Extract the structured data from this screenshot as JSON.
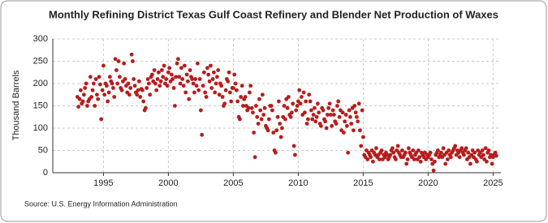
{
  "chart_data": {
    "type": "scatter",
    "title": "Monthly Refining District Texas Gulf Coast Refinery and Blender Net Production of Waxes",
    "ylabel": "Thousand Barrels",
    "source": "Source: U.S. Energy Information Administration",
    "color": "#b81c1c",
    "grid": true,
    "xlim": [
      1991.1,
      2025.6
    ],
    "xticks": [
      1995,
      2000,
      2005,
      2010,
      2015,
      2020,
      2025
    ],
    "ylim": [
      0,
      300
    ],
    "yticks": [
      0,
      50,
      100,
      150,
      200,
      250,
      300
    ],
    "x": [
      1993,
      1993.08,
      1993.17,
      1993.25,
      1993.33,
      1993.42,
      1993.5,
      1993.58,
      1993.67,
      1993.75,
      1993.83,
      1993.92,
      1994,
      1994.08,
      1994.17,
      1994.25,
      1994.33,
      1994.42,
      1994.5,
      1994.58,
      1994.67,
      1994.75,
      1994.83,
      1994.92,
      1995,
      1995.08,
      1995.17,
      1995.25,
      1995.33,
      1995.42,
      1995.5,
      1995.58,
      1995.67,
      1995.75,
      1995.83,
      1995.92,
      1996,
      1996.08,
      1996.17,
      1996.25,
      1996.33,
      1996.42,
      1996.5,
      1996.58,
      1996.67,
      1996.75,
      1996.83,
      1996.92,
      1997,
      1997.08,
      1997.17,
      1997.25,
      1997.33,
      1997.42,
      1997.5,
      1997.58,
      1997.67,
      1997.75,
      1997.83,
      1997.92,
      1998,
      1998.08,
      1998.17,
      1998.25,
      1998.33,
      1998.42,
      1998.5,
      1998.58,
      1998.67,
      1998.75,
      1998.83,
      1998.92,
      1999,
      1999.08,
      1999.17,
      1999.25,
      1999.33,
      1999.42,
      1999.5,
      1999.58,
      1999.67,
      1999.75,
      1999.83,
      1999.92,
      2000,
      2000.08,
      2000.17,
      2000.25,
      2000.33,
      2000.42,
      2000.5,
      2000.58,
      2000.67,
      2000.75,
      2000.83,
      2000.92,
      2001,
      2001.08,
      2001.17,
      2001.25,
      2001.33,
      2001.42,
      2001.5,
      2001.58,
      2001.67,
      2001.75,
      2001.83,
      2001.92,
      2002,
      2002.08,
      2002.17,
      2002.25,
      2002.33,
      2002.42,
      2002.5,
      2002.58,
      2002.67,
      2002.75,
      2002.83,
      2002.92,
      2003,
      2003.08,
      2003.17,
      2003.25,
      2003.33,
      2003.42,
      2003.5,
      2003.58,
      2003.67,
      2003.75,
      2003.83,
      2003.92,
      2004,
      2004.08,
      2004.17,
      2004.25,
      2004.33,
      2004.42,
      2004.5,
      2004.58,
      2004.67,
      2004.75,
      2004.83,
      2004.92,
      2005,
      2005.08,
      2005.17,
      2005.25,
      2005.33,
      2005.42,
      2005.5,
      2005.58,
      2005.67,
      2005.75,
      2005.83,
      2005.92,
      2006,
      2006.08,
      2006.17,
      2006.25,
      2006.33,
      2006.42,
      2006.5,
      2006.58,
      2006.67,
      2006.75,
      2006.83,
      2006.92,
      2007,
      2007.08,
      2007.17,
      2007.25,
      2007.33,
      2007.42,
      2007.5,
      2007.58,
      2007.67,
      2007.75,
      2007.83,
      2007.92,
      2008,
      2008.08,
      2008.17,
      2008.25,
      2008.33,
      2008.42,
      2008.5,
      2008.58,
      2008.67,
      2008.75,
      2008.83,
      2008.92,
      2009,
      2009.08,
      2009.17,
      2009.25,
      2009.33,
      2009.42,
      2009.5,
      2009.58,
      2009.67,
      2009.75,
      2009.83,
      2009.92,
      2010,
      2010.08,
      2010.17,
      2010.25,
      2010.33,
      2010.42,
      2010.5,
      2010.58,
      2010.67,
      2010.75,
      2010.83,
      2010.92,
      2011,
      2011.08,
      2011.17,
      2011.25,
      2011.33,
      2011.42,
      2011.5,
      2011.58,
      2011.67,
      2011.75,
      2011.83,
      2011.92,
      2012,
      2012.08,
      2012.17,
      2012.25,
      2012.33,
      2012.42,
      2012.5,
      2012.58,
      2012.67,
      2012.75,
      2012.83,
      2012.92,
      2013,
      2013.08,
      2013.17,
      2013.25,
      2013.33,
      2013.42,
      2013.5,
      2013.58,
      2013.67,
      2013.75,
      2013.83,
      2013.92,
      2014,
      2014.08,
      2014.17,
      2014.25,
      2014.33,
      2014.42,
      2014.5,
      2014.58,
      2014.67,
      2014.75,
      2014.83,
      2014.92,
      2015,
      2015.08,
      2015.17,
      2015.25,
      2015.33,
      2015.42,
      2015.5,
      2015.58,
      2015.67,
      2015.75,
      2015.83,
      2015.92,
      2016,
      2016.08,
      2016.17,
      2016.25,
      2016.33,
      2016.42,
      2016.5,
      2016.58,
      2016.67,
      2016.75,
      2016.83,
      2016.92,
      2017,
      2017.08,
      2017.17,
      2017.25,
      2017.33,
      2017.42,
      2017.5,
      2017.58,
      2017.67,
      2017.75,
      2017.83,
      2017.92,
      2018,
      2018.08,
      2018.17,
      2018.25,
      2018.33,
      2018.42,
      2018.5,
      2018.58,
      2018.67,
      2018.75,
      2018.83,
      2018.92,
      2019,
      2019.08,
      2019.17,
      2019.25,
      2019.33,
      2019.42,
      2019.5,
      2019.58,
      2019.67,
      2019.75,
      2019.83,
      2019.92,
      2020,
      2020.08,
      2020.17,
      2020.25,
      2020.33,
      2020.42,
      2020.5,
      2020.58,
      2020.67,
      2020.75,
      2020.83,
      2020.92,
      2021,
      2021.08,
      2021.17,
      2021.25,
      2021.33,
      2021.42,
      2021.5,
      2021.58,
      2021.67,
      2021.75,
      2021.83,
      2021.92,
      2022,
      2022.08,
      2022.17,
      2022.25,
      2022.33,
      2022.42,
      2022.5,
      2022.58,
      2022.67,
      2022.75,
      2022.83,
      2022.92,
      2023,
      2023.08,
      2023.17,
      2023.25,
      2023.33,
      2023.42,
      2023.5,
      2023.58,
      2023.67,
      2023.75,
      2023.83,
      2023.92,
      2024,
      2024.08,
      2024.17,
      2024.25,
      2024.33,
      2024.42,
      2024.5,
      2024.58,
      2024.67,
      2024.75,
      2024.83,
      2024.92,
      2025,
      2025.08,
      2025.17,
      2025.25
    ],
    "values": [
      170,
      148,
      165,
      185,
      155,
      160,
      175,
      190,
      200,
      150,
      160,
      165,
      215,
      170,
      185,
      200,
      150,
      210,
      175,
      165,
      215,
      198,
      120,
      185,
      240,
      175,
      200,
      195,
      160,
      180,
      215,
      205,
      200,
      190,
      170,
      255,
      230,
      200,
      250,
      215,
      190,
      185,
      205,
      245,
      210,
      195,
      180,
      200,
      175,
      190,
      265,
      250,
      210,
      195,
      180,
      175,
      185,
      205,
      170,
      188,
      185,
      160,
      140,
      145,
      190,
      210,
      200,
      175,
      215,
      220,
      205,
      230,
      200,
      185,
      210,
      225,
      195,
      205,
      230,
      215,
      240,
      200,
      210,
      195,
      225,
      235,
      205,
      220,
      210,
      190,
      150,
      215,
      245,
      255,
      215,
      200,
      235,
      210,
      195,
      240,
      180,
      220,
      205,
      165,
      230,
      215,
      210,
      200,
      180,
      210,
      195,
      245,
      185,
      210,
      140,
      85,
      195,
      225,
      180,
      170,
      235,
      220,
      205,
      240,
      190,
      210,
      225,
      180,
      200,
      215,
      230,
      175,
      200,
      195,
      170,
      150,
      155,
      185,
      210,
      205,
      225,
      180,
      160,
      190,
      190,
      220,
      200,
      185,
      160,
      125,
      120,
      170,
      195,
      150,
      165,
      170,
      150,
      140,
      145,
      180,
      195,
      145,
      135,
      90,
      35,
      150,
      125,
      110,
      165,
      140,
      120,
      175,
      130,
      145,
      105,
      100,
      95,
      120,
      150,
      150,
      140,
      90,
      50,
      45,
      95,
      125,
      160,
      110,
      80,
      100,
      125,
      150,
      120,
      165,
      145,
      170,
      130,
      125,
      135,
      155,
      60,
      40,
      140,
      150,
      160,
      185,
      155,
      170,
      130,
      180,
      135,
      160,
      110,
      120,
      175,
      160,
      140,
      120,
      130,
      145,
      115,
      125,
      155,
      135,
      110,
      105,
      145,
      140,
      120,
      115,
      100,
      130,
      145,
      155,
      130,
      105,
      140,
      130,
      115,
      110,
      150,
      160,
      125,
      140,
      95,
      135,
      90,
      115,
      130,
      105,
      45,
      140,
      125,
      110,
      145,
      95,
      150,
      135,
      125,
      115,
      155,
      95,
      60,
      140,
      80,
      40,
      35,
      50,
      30,
      45,
      40,
      35,
      50,
      25,
      45,
      40,
      55,
      35,
      40,
      30,
      45,
      50,
      30,
      40,
      35,
      45,
      40,
      30,
      35,
      40,
      50,
      55,
      45,
      35,
      30,
      50,
      60,
      45,
      40,
      35,
      50,
      35,
      40,
      45,
      20,
      30,
      55,
      45,
      40,
      35,
      50,
      30,
      40,
      45,
      30,
      50,
      35,
      25,
      45,
      40,
      35,
      45,
      30,
      40,
      35,
      40,
      45,
      30,
      20,
      5,
      25,
      40,
      45,
      50,
      35,
      40,
      45,
      35,
      55,
      40,
      20,
      45,
      30,
      50,
      40,
      35,
      45,
      50,
      55,
      60,
      40,
      50,
      45,
      35,
      50,
      55,
      45,
      40,
      50,
      55,
      30,
      45,
      35,
      20,
      40,
      50,
      35,
      45,
      30,
      25,
      50,
      40,
      45,
      35,
      50,
      40,
      30,
      55,
      25,
      45,
      50,
      35,
      40,
      20,
      35,
      40,
      45,
      38
    ]
  }
}
